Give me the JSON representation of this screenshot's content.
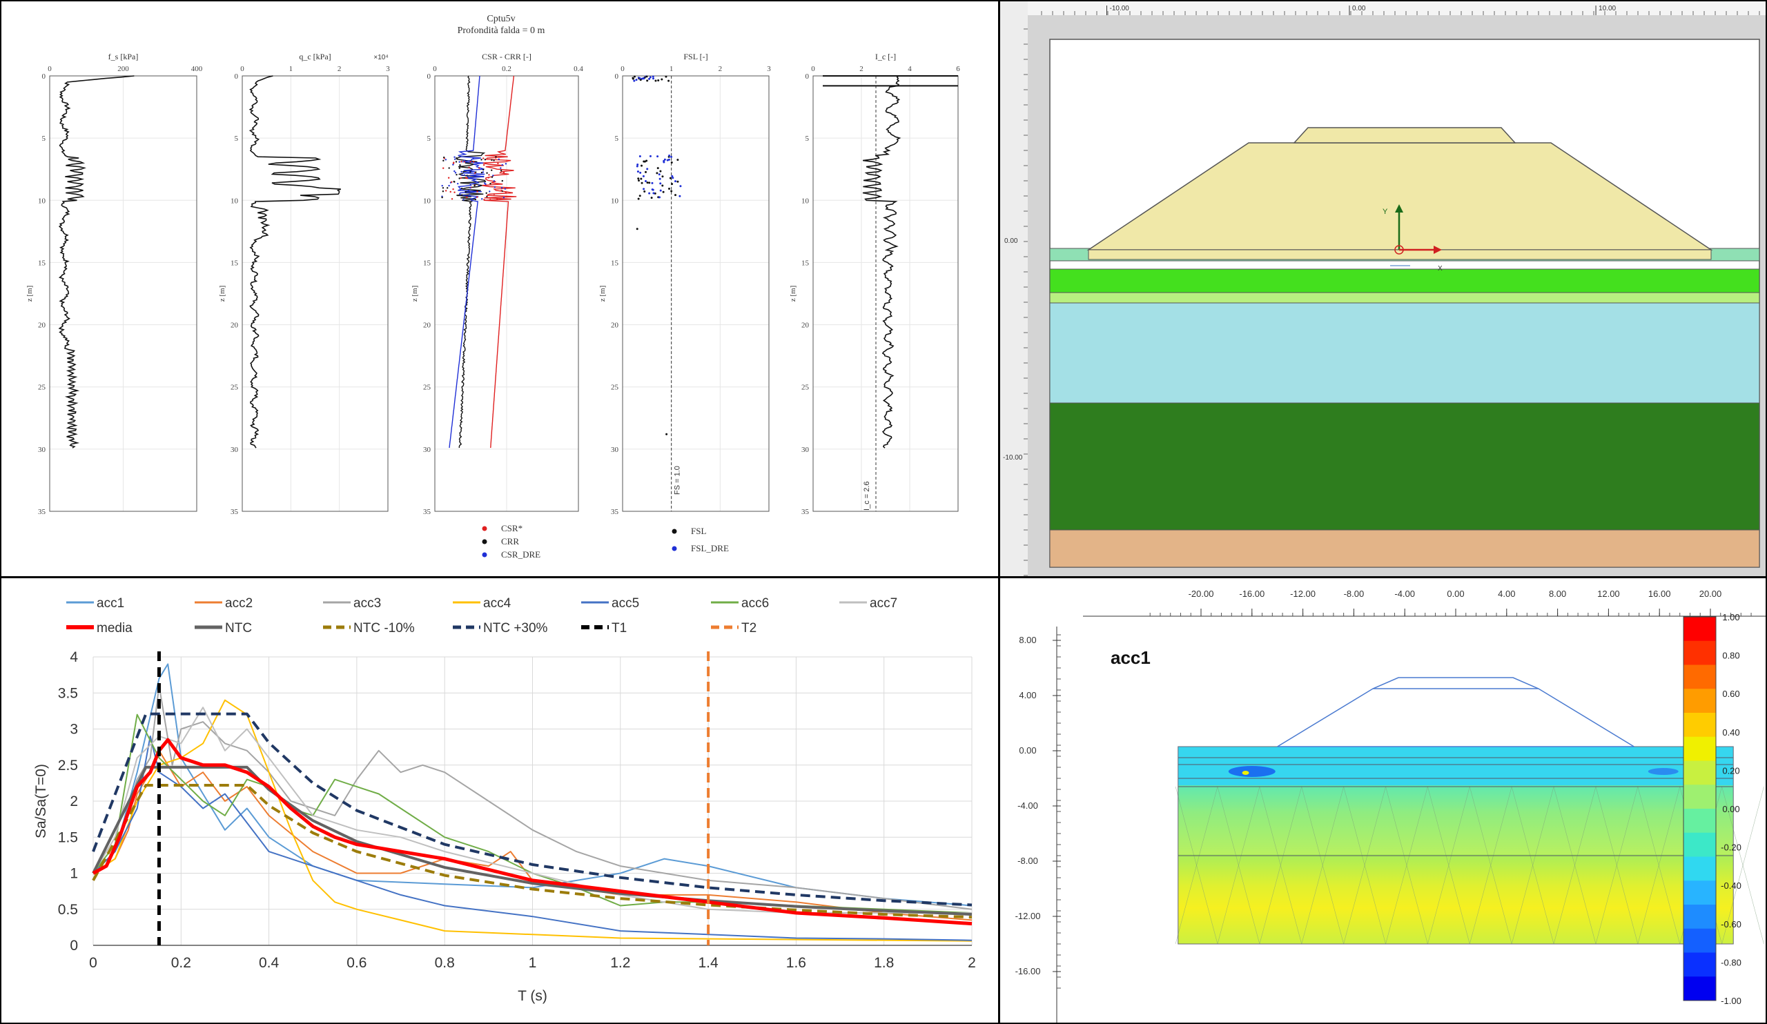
{
  "cptu": {
    "title": "Cptu5v",
    "subtitle": "Profondità falda = 0 m",
    "ylabel": "z [m]",
    "z_ticks": [
      "0",
      "5",
      "10",
      "15",
      "20",
      "25",
      "30",
      "35"
    ],
    "plots": [
      {
        "id": "fs",
        "label": "f_s [kPa]",
        "ticks": [
          "0",
          "200",
          "400"
        ]
      },
      {
        "id": "qc",
        "label": "q_c [kPa]",
        "ticks": [
          "0",
          "1",
          "2",
          "3"
        ],
        "multiplier": "×10⁴"
      },
      {
        "id": "csr",
        "label": "CSR - CRR [-]",
        "ticks": [
          "0",
          "0.2",
          "0.4"
        ]
      },
      {
        "id": "fsl",
        "label": "FSL [-]",
        "ticks": [
          "0",
          "1",
          "2",
          "3"
        ]
      },
      {
        "id": "ic",
        "label": "I_c [-]",
        "ticks": [
          "0",
          "2",
          "4",
          "6"
        ]
      }
    ],
    "fsl_ref": "FS = 1.0",
    "ic_ref": "I_c = 2.6",
    "legend_csr": [
      "CSR*",
      "CRR",
      "CSR_DRE"
    ],
    "legend_fsl": [
      "FSL",
      "FSL_DRE"
    ]
  },
  "fem": {
    "top_ruler": [
      "-10.00",
      "0.00",
      "10.00"
    ],
    "left_ruler": [
      "0.00",
      "-10.00"
    ],
    "axis_y": "Y",
    "axis_x": "X",
    "layer_colors": {
      "embankment": "#f0e8a8",
      "topsoil": "#8fe0b4",
      "green1": "#44e01e",
      "green2": "#b8f080",
      "clay": "#a4e0e6",
      "dark": "#2e7d1e",
      "base": "#e3b488"
    }
  },
  "spectra": {
    "chart_data": {
      "type": "line",
      "xlabel": "T (s)",
      "ylabel": "Sa/Sa(T=0)",
      "xlim": [
        0,
        2
      ],
      "ylim": [
        0,
        4
      ],
      "x_ticks": [
        "0",
        "0.2",
        "0.4",
        "0.6",
        "0.8",
        "1",
        "1.2",
        "1.4",
        "1.6",
        "1.8",
        "2"
      ],
      "y_ticks": [
        "0",
        "0.5",
        "1",
        "1.5",
        "2",
        "2.5",
        "3",
        "3.5",
        "4"
      ],
      "grid": true,
      "legend_position": "top",
      "series": [
        {
          "name": "acc1",
          "color": "#5b9bd5",
          "style": "solid",
          "width": 2,
          "points": [
            [
              0,
              1
            ],
            [
              0.05,
              1.3
            ],
            [
              0.1,
              2.4
            ],
            [
              0.15,
              3.7
            ],
            [
              0.17,
              3.9
            ],
            [
              0.2,
              2.6
            ],
            [
              0.25,
              2.1
            ],
            [
              0.3,
              1.6
            ],
            [
              0.35,
              1.9
            ],
            [
              0.4,
              1.5
            ],
            [
              0.5,
              1.1
            ],
            [
              0.6,
              0.9
            ],
            [
              0.8,
              0.85
            ],
            [
              1,
              0.8
            ],
            [
              1.2,
              1.0
            ],
            [
              1.3,
              1.2
            ],
            [
              1.4,
              1.1
            ],
            [
              1.6,
              0.8
            ],
            [
              1.8,
              0.65
            ],
            [
              2,
              0.55
            ]
          ]
        },
        {
          "name": "acc2",
          "color": "#ed7d31",
          "style": "solid",
          "width": 2,
          "points": [
            [
              0,
              1
            ],
            [
              0.05,
              1.2
            ],
            [
              0.08,
              1.6
            ],
            [
              0.1,
              2.1
            ],
            [
              0.13,
              2.4
            ],
            [
              0.15,
              2.7
            ],
            [
              0.2,
              2.2
            ],
            [
              0.25,
              2.4
            ],
            [
              0.3,
              2.0
            ],
            [
              0.35,
              2.2
            ],
            [
              0.4,
              1.8
            ],
            [
              0.5,
              1.3
            ],
            [
              0.6,
              1.0
            ],
            [
              0.7,
              1.0
            ],
            [
              0.8,
              1.2
            ],
            [
              0.9,
              1.1
            ],
            [
              0.95,
              1.3
            ],
            [
              1,
              0.9
            ],
            [
              1.2,
              0.7
            ],
            [
              1.4,
              0.7
            ],
            [
              1.6,
              0.6
            ],
            [
              1.8,
              0.45
            ],
            [
              2,
              0.35
            ]
          ]
        },
        {
          "name": "acc3",
          "color": "#a5a5a5",
          "style": "solid",
          "width": 2,
          "points": [
            [
              0,
              1
            ],
            [
              0.05,
              1.3
            ],
            [
              0.1,
              2.3
            ],
            [
              0.13,
              2.6
            ],
            [
              0.15,
              3.6
            ],
            [
              0.18,
              2.5
            ],
            [
              0.2,
              3.0
            ],
            [
              0.25,
              3.1
            ],
            [
              0.3,
              2.8
            ],
            [
              0.35,
              2.7
            ],
            [
              0.4,
              2.4
            ],
            [
              0.45,
              2.0
            ],
            [
              0.5,
              1.9
            ],
            [
              0.55,
              1.8
            ],
            [
              0.6,
              2.3
            ],
            [
              0.65,
              2.7
            ],
            [
              0.7,
              2.4
            ],
            [
              0.75,
              2.5
            ],
            [
              0.8,
              2.4
            ],
            [
              0.9,
              2.0
            ],
            [
              1,
              1.6
            ],
            [
              1.1,
              1.3
            ],
            [
              1.2,
              1.1
            ],
            [
              1.4,
              0.9
            ],
            [
              1.6,
              0.8
            ],
            [
              1.8,
              0.65
            ],
            [
              2,
              0.5
            ]
          ]
        },
        {
          "name": "acc4",
          "color": "#ffc000",
          "style": "solid",
          "width": 2,
          "points": [
            [
              0,
              1
            ],
            [
              0.05,
              1.2
            ],
            [
              0.1,
              2.0
            ],
            [
              0.15,
              2.5
            ],
            [
              0.2,
              2.6
            ],
            [
              0.25,
              2.8
            ],
            [
              0.3,
              3.4
            ],
            [
              0.35,
              3.2
            ],
            [
              0.4,
              2.4
            ],
            [
              0.45,
              1.6
            ],
            [
              0.5,
              0.9
            ],
            [
              0.55,
              0.6
            ],
            [
              0.6,
              0.5
            ],
            [
              0.7,
              0.35
            ],
            [
              0.8,
              0.2
            ],
            [
              1,
              0.15
            ],
            [
              1.2,
              0.1
            ],
            [
              1.6,
              0.08
            ],
            [
              2,
              0.06
            ]
          ]
        },
        {
          "name": "acc5",
          "color": "#4472c4",
          "style": "solid",
          "width": 2,
          "points": [
            [
              0,
              1
            ],
            [
              0.05,
              1.3
            ],
            [
              0.1,
              1.9
            ],
            [
              0.13,
              2.9
            ],
            [
              0.15,
              2.4
            ],
            [
              0.2,
              2.2
            ],
            [
              0.25,
              1.9
            ],
            [
              0.3,
              2.1
            ],
            [
              0.35,
              1.7
            ],
            [
              0.4,
              1.3
            ],
            [
              0.5,
              1.1
            ],
            [
              0.6,
              0.9
            ],
            [
              0.7,
              0.7
            ],
            [
              0.8,
              0.55
            ],
            [
              1,
              0.4
            ],
            [
              1.2,
              0.2
            ],
            [
              1.4,
              0.15
            ],
            [
              1.6,
              0.1
            ],
            [
              1.8,
              0.09
            ],
            [
              2,
              0.07
            ]
          ]
        },
        {
          "name": "acc6",
          "color": "#70ad47",
          "style": "solid",
          "width": 2,
          "points": [
            [
              0,
              1
            ],
            [
              0.05,
              1.4
            ],
            [
              0.1,
              3.2
            ],
            [
              0.15,
              2.6
            ],
            [
              0.2,
              2.3
            ],
            [
              0.25,
              2.0
            ],
            [
              0.3,
              1.8
            ],
            [
              0.35,
              2.3
            ],
            [
              0.4,
              2.2
            ],
            [
              0.45,
              1.9
            ],
            [
              0.5,
              1.8
            ],
            [
              0.55,
              2.3
            ],
            [
              0.6,
              2.2
            ],
            [
              0.65,
              2.1
            ],
            [
              0.7,
              1.9
            ],
            [
              0.8,
              1.5
            ],
            [
              0.9,
              1.3
            ],
            [
              1,
              1.0
            ],
            [
              1.1,
              0.8
            ],
            [
              1.2,
              0.55
            ],
            [
              1.3,
              0.6
            ],
            [
              1.4,
              0.6
            ],
            [
              1.6,
              0.55
            ],
            [
              1.8,
              0.5
            ],
            [
              2,
              0.45
            ]
          ]
        },
        {
          "name": "acc7",
          "color": "#bfbfbf",
          "style": "solid",
          "width": 2,
          "points": [
            [
              0,
              1
            ],
            [
              0.05,
              1.5
            ],
            [
              0.1,
              2.6
            ],
            [
              0.15,
              2.9
            ],
            [
              0.2,
              2.8
            ],
            [
              0.25,
              3.3
            ],
            [
              0.3,
              2.7
            ],
            [
              0.35,
              3.0
            ],
            [
              0.4,
              2.6
            ],
            [
              0.45,
              2.2
            ],
            [
              0.5,
              1.8
            ],
            [
              0.6,
              1.6
            ],
            [
              0.7,
              1.5
            ],
            [
              0.8,
              1.3
            ],
            [
              1,
              1.0
            ],
            [
              1.2,
              0.7
            ],
            [
              1.4,
              0.5
            ],
            [
              1.6,
              0.45
            ],
            [
              1.8,
              0.45
            ],
            [
              2,
              0.45
            ]
          ]
        },
        {
          "name": "media",
          "color": "#ff0000",
          "style": "solid",
          "width": 5,
          "points": [
            [
              0,
              1
            ],
            [
              0.03,
              1.1
            ],
            [
              0.06,
              1.5
            ],
            [
              0.1,
              2.2
            ],
            [
              0.13,
              2.4
            ],
            [
              0.15,
              2.7
            ],
            [
              0.17,
              2.85
            ],
            [
              0.2,
              2.6
            ],
            [
              0.25,
              2.5
            ],
            [
              0.3,
              2.5
            ],
            [
              0.35,
              2.4
            ],
            [
              0.4,
              2.2
            ],
            [
              0.45,
              1.9
            ],
            [
              0.5,
              1.65
            ],
            [
              0.55,
              1.5
            ],
            [
              0.6,
              1.4
            ],
            [
              0.65,
              1.35
            ],
            [
              0.7,
              1.3
            ],
            [
              0.8,
              1.2
            ],
            [
              0.9,
              1.05
            ],
            [
              1,
              0.9
            ],
            [
              1.2,
              0.75
            ],
            [
              1.4,
              0.6
            ],
            [
              1.6,
              0.45
            ],
            [
              1.8,
              0.38
            ],
            [
              2,
              0.3
            ]
          ]
        },
        {
          "name": "NTC",
          "color": "#636363",
          "style": "solid",
          "width": 4,
          "points": [
            [
              0,
              1
            ],
            [
              0.12,
              2.47
            ],
            [
              0.35,
              2.47
            ],
            [
              0.4,
              2.16
            ],
            [
              0.5,
              1.73
            ],
            [
              0.6,
              1.44
            ],
            [
              0.8,
              1.08
            ],
            [
              1,
              0.86
            ],
            [
              1.2,
              0.72
            ],
            [
              1.4,
              0.62
            ],
            [
              1.6,
              0.54
            ],
            [
              1.8,
              0.48
            ],
            [
              2,
              0.43
            ]
          ]
        },
        {
          "name": "NTC -10%",
          "color": "#9c7c0b",
          "style": "dash",
          "width": 4,
          "points": [
            [
              0,
              0.9
            ],
            [
              0.12,
              2.22
            ],
            [
              0.35,
              2.22
            ],
            [
              0.4,
              1.94
            ],
            [
              0.5,
              1.56
            ],
            [
              0.6,
              1.3
            ],
            [
              0.8,
              0.97
            ],
            [
              1,
              0.78
            ],
            [
              1.2,
              0.65
            ],
            [
              1.4,
              0.56
            ],
            [
              1.6,
              0.49
            ],
            [
              1.8,
              0.43
            ],
            [
              2,
              0.39
            ]
          ]
        },
        {
          "name": "NTC +30%",
          "color": "#203864",
          "style": "dash",
          "width": 4,
          "points": [
            [
              0,
              1.3
            ],
            [
              0.12,
              3.21
            ],
            [
              0.35,
              3.21
            ],
            [
              0.4,
              2.81
            ],
            [
              0.5,
              2.25
            ],
            [
              0.6,
              1.87
            ],
            [
              0.8,
              1.4
            ],
            [
              1,
              1.12
            ],
            [
              1.2,
              0.94
            ],
            [
              1.4,
              0.8
            ],
            [
              1.6,
              0.7
            ],
            [
              1.8,
              0.62
            ],
            [
              2,
              0.56
            ]
          ]
        },
        {
          "name": "T1",
          "color": "#000000",
          "style": "dash",
          "width": 5,
          "vertical": 0.15
        },
        {
          "name": "T2",
          "color": "#ed7d31",
          "style": "dash",
          "width": 4,
          "vertical": 1.4
        }
      ]
    }
  },
  "contour": {
    "title": "acc1",
    "top_ruler": [
      "-20.00",
      "-16.00",
      "-12.00",
      "-8.00",
      "-4.00",
      "0.00",
      "4.00",
      "8.00",
      "12.00",
      "16.00",
      "20.00"
    ],
    "left_ruler": [
      "8.00",
      "4.00",
      "0.00",
      "-4.00",
      "-8.00",
      "-12.00",
      "-16.00"
    ],
    "colorbar": [
      "1.00",
      "0.80",
      "0.60",
      "0.40",
      "0.20",
      "0.00",
      "-0.20",
      "-0.40",
      "-0.60",
      "-0.80",
      "-1.00"
    ],
    "colorbar_colors": [
      "#ff0000",
      "#ff3000",
      "#ff6a00",
      "#ff9c00",
      "#ffcc00",
      "#f0f000",
      "#c8f040",
      "#9ef070",
      "#66f0a0",
      "#3ce8c8",
      "#30d8f0",
      "#28b4ff",
      "#1e8cff",
      "#1460ff",
      "#0a30ff",
      "#0000f0"
    ]
  }
}
